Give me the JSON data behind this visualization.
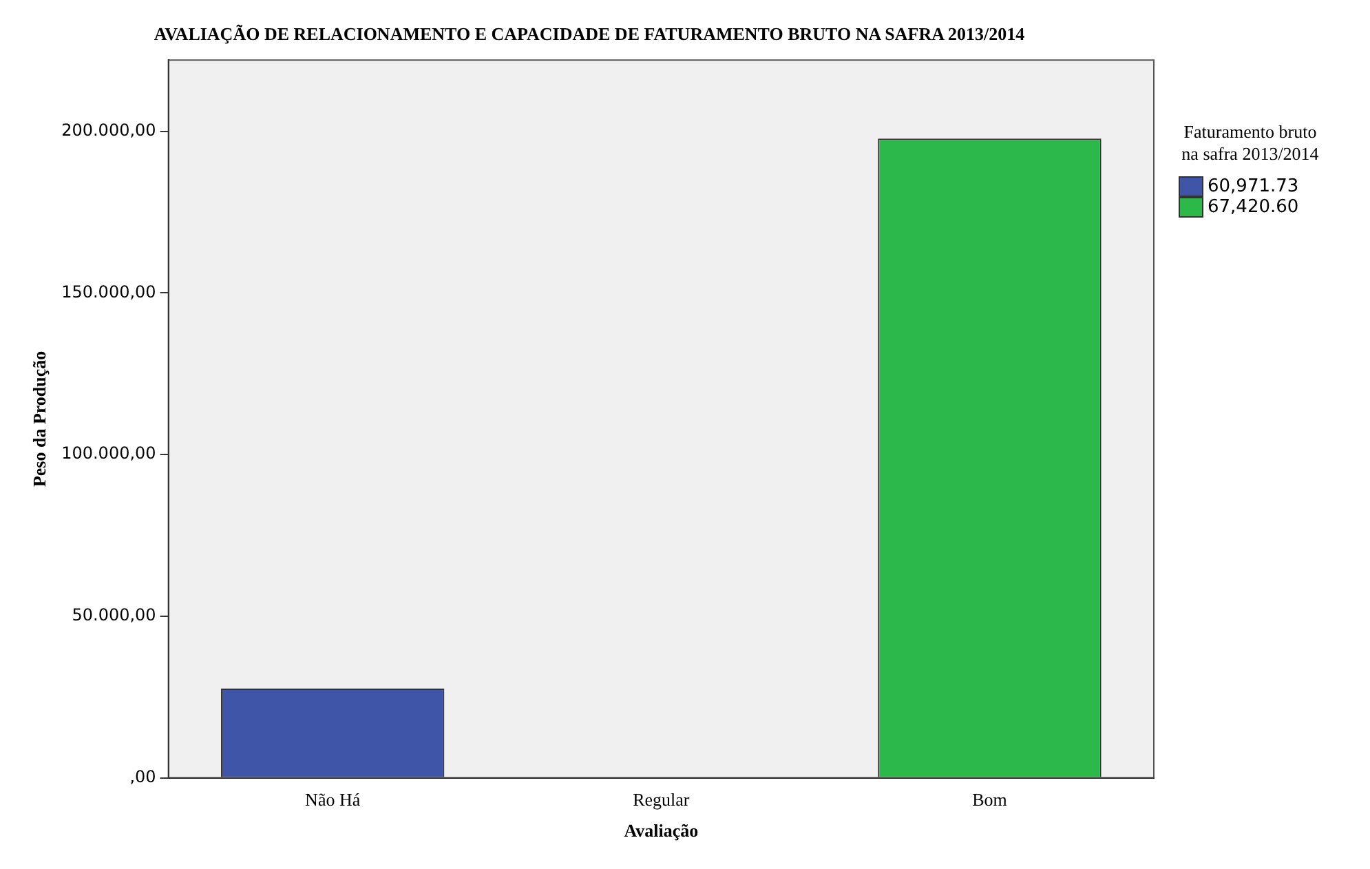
{
  "chart_data": {
    "type": "bar",
    "title": "AVALIAÇÃO DE RELACIONAMENTO E CAPACIDADE DE FATURAMENTO BRUTO NA SAFRA 2013/2014",
    "xlabel": "Avaliação",
    "ylabel": "Peso da Produção",
    "legend_title": "Faturamento bruto na safra 2013/2014",
    "categories": [
      "Não Há",
      "Regular",
      "Bom"
    ],
    "series": [
      {
        "name": "60,971.73",
        "color": "#3f56a8",
        "values": [
          27600,
          null,
          null
        ]
      },
      {
        "name": "67,420.60",
        "color": "#2db84a",
        "values": [
          null,
          null,
          197700
        ]
      }
    ],
    "ylim": [
      0,
      222000
    ],
    "yticks": [
      {
        "value": 0,
        "label": ",00"
      },
      {
        "value": 50000,
        "label": "50.000,00"
      },
      {
        "value": 100000,
        "label": "100.000,00"
      },
      {
        "value": 150000,
        "label": "150.000,00"
      },
      {
        "value": 200000,
        "label": "200.000,00"
      }
    ],
    "grid": false,
    "legend": "top right"
  }
}
